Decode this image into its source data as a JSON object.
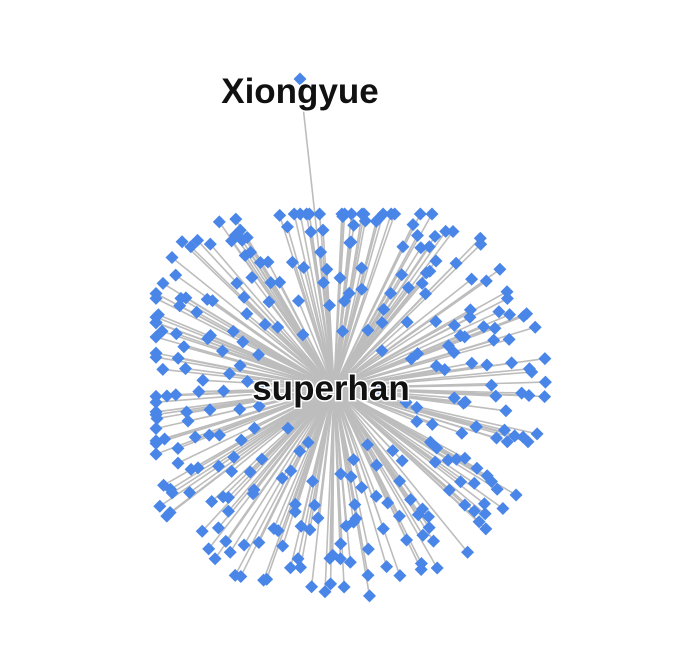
{
  "graph": {
    "colors": {
      "node": "#4a86e8",
      "edge": "#bdbdbd",
      "label": "#111111",
      "background": "#ffffff"
    },
    "node_shape": "diamond",
    "hub_label": "superhan",
    "outlier_label": "Xiongyue",
    "labels": {
      "hub": "superhan",
      "outlier": "Xiongyue"
    },
    "leaf_count": 320
  }
}
